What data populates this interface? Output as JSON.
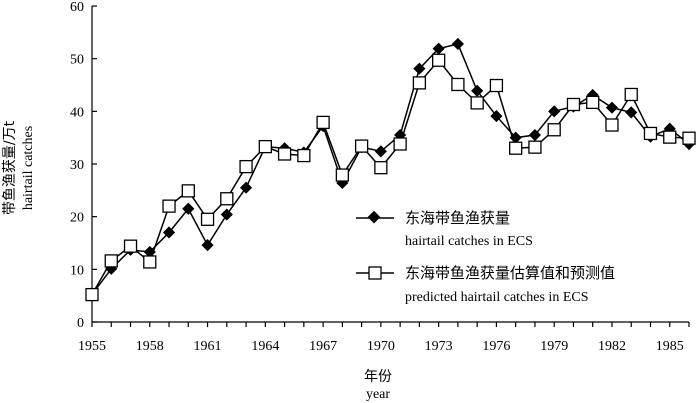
{
  "chart_data": {
    "type": "line",
    "xlabel": "年份",
    "xlabel_en": "year",
    "ylabel": "带鱼渔获量/万t",
    "ylabel_en": "hairtail catches",
    "xlim": [
      1955,
      1986
    ],
    "ylim": [
      0,
      60
    ],
    "x_ticks": [
      "1955",
      "1958",
      "1961",
      "1964",
      "1967",
      "1970",
      "1973",
      "1976",
      "1979",
      "1982",
      "1985"
    ],
    "y_ticks": [
      "0",
      "10",
      "20",
      "30",
      "40",
      "50",
      "60"
    ],
    "grid": false,
    "legend_position": "bottom-right",
    "x": [
      1955,
      1956,
      1957,
      1958,
      1959,
      1960,
      1961,
      1962,
      1963,
      1964,
      1965,
      1966,
      1967,
      1968,
      1969,
      1970,
      1971,
      1972,
      1973,
      1974,
      1975,
      1976,
      1977,
      1978,
      1979,
      1980,
      1981,
      1982,
      1983,
      1984,
      1985,
      1986
    ],
    "series": [
      {
        "name": "东海带鱼渔获量",
        "name_en": "hairtail catches in ECS",
        "marker": "filled-diamond",
        "color": "#000000",
        "values": [
          5.2,
          10.1,
          13.7,
          13.3,
          17.0,
          21.5,
          14.6,
          20.4,
          25.5,
          33.3,
          33.0,
          32.2,
          37.2,
          26.4,
          33.2,
          32.4,
          35.5,
          48.1,
          51.9,
          52.8,
          43.9,
          39.1,
          35.0,
          35.5,
          40.0,
          40.9,
          43.1,
          40.7,
          39.8,
          35.2,
          36.7,
          33.8
        ]
      },
      {
        "name": "东海带鱼渔获量估算值和预测值",
        "name_en": "predicted hairtail catches in ECS",
        "marker": "open-square",
        "color": "#000000",
        "values": [
          5.2,
          11.6,
          14.4,
          11.4,
          22.0,
          24.9,
          19.5,
          23.4,
          29.5,
          33.3,
          31.9,
          31.6,
          37.9,
          27.9,
          33.4,
          29.3,
          33.8,
          45.4,
          49.7,
          45.1,
          41.6,
          44.9,
          33.0,
          33.2,
          36.5,
          41.3,
          41.7,
          37.4,
          43.2,
          35.8,
          35.1,
          34.9
        ]
      }
    ]
  }
}
